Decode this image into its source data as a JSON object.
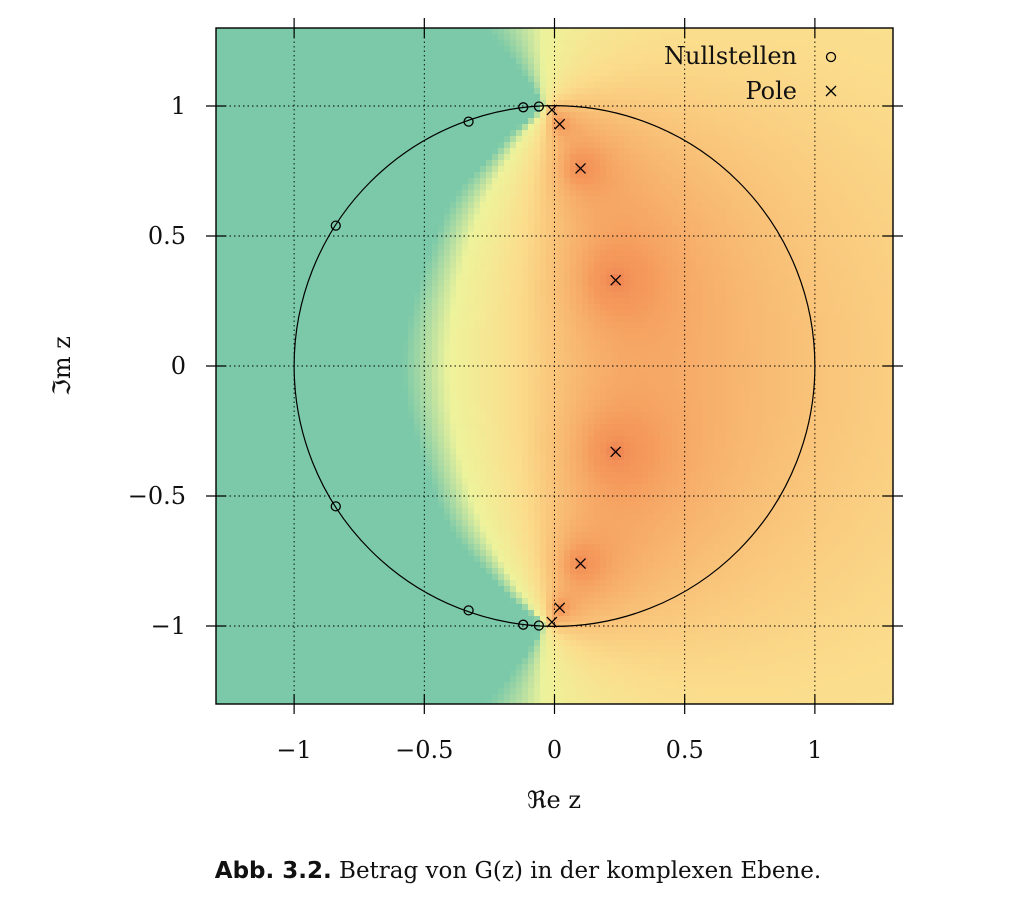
{
  "chart_data": {
    "type": "heatmap",
    "title": "",
    "xlabel": "ℜe z",
    "ylabel": "ℑm z",
    "xlim": [
      -1.3,
      1.3
    ],
    "ylim": [
      -1.3,
      1.3
    ],
    "xticks": [
      -1,
      -0.5,
      0,
      0.5,
      1
    ],
    "yticks": [
      -1,
      -0.5,
      0,
      0.5,
      1
    ],
    "xtick_labels": [
      "−1",
      "−0.5",
      "0",
      "0.5",
      "1"
    ],
    "ytick_labels": [
      "−1",
      "−0.5",
      "0",
      "0.5",
      "1"
    ],
    "grid": true,
    "unit_circle": true,
    "legend": {
      "placement": "top-right",
      "entries": [
        {
          "label": "Nullstellen",
          "marker": "circle"
        },
        {
          "label": "Pole",
          "marker": "cross"
        }
      ]
    },
    "zeros": [
      {
        "re": -0.84,
        "im": 0.54
      },
      {
        "re": -0.84,
        "im": -0.54
      },
      {
        "re": -0.33,
        "im": 0.94
      },
      {
        "re": -0.33,
        "im": -0.94
      },
      {
        "re": -0.12,
        "im": 0.995
      },
      {
        "re": -0.12,
        "im": -0.995
      },
      {
        "re": -0.06,
        "im": 0.998
      },
      {
        "re": -0.06,
        "im": -0.998
      }
    ],
    "poles": [
      {
        "re": -0.01,
        "im": 0.985
      },
      {
        "re": -0.01,
        "im": -0.985
      },
      {
        "re": 0.02,
        "im": 0.93
      },
      {
        "re": 0.02,
        "im": -0.93
      },
      {
        "re": 0.1,
        "im": 0.76
      },
      {
        "re": 0.1,
        "im": -0.76
      },
      {
        "re": 0.235,
        "im": 0.33
      },
      {
        "re": 0.235,
        "im": -0.33
      }
    ],
    "colors": {
      "low": "#2c7bb6",
      "mid_low": "#7cc9a9",
      "mid": "#eef39b",
      "mid_high": "#f59b5c",
      "high": "#e0453a",
      "far": "#fbdc8c"
    }
  },
  "caption": {
    "lead": "Abb. 3.2.",
    "text": "Betrag von G(z) in der komplexen Ebene."
  }
}
